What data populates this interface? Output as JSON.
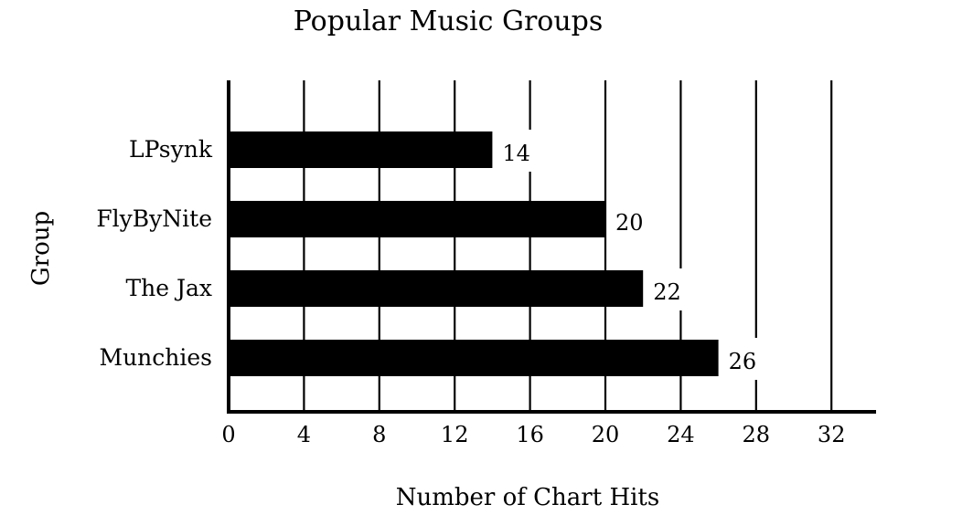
{
  "chart_data": {
    "type": "bar",
    "orientation": "horizontal",
    "title": "Popular Music Groups",
    "xlabel": "Number of Chart Hits",
    "ylabel": "Group",
    "categories": [
      "LPsynk",
      "FlyByNite",
      "The Jax",
      "Munchies"
    ],
    "values": [
      14,
      20,
      22,
      26
    ],
    "xlim": [
      0,
      34
    ],
    "xticks": [
      0,
      4,
      8,
      12,
      16,
      20,
      24,
      28,
      32
    ],
    "grid": true,
    "data_labels": true,
    "bar_color": "#000000"
  }
}
